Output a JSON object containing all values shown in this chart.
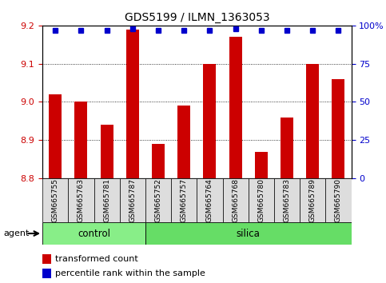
{
  "title": "GDS5199 / ILMN_1363053",
  "samples": [
    "GSM665755",
    "GSM665763",
    "GSM665781",
    "GSM665787",
    "GSM665752",
    "GSM665757",
    "GSM665764",
    "GSM665768",
    "GSM665780",
    "GSM665783",
    "GSM665789",
    "GSM665790"
  ],
  "red_values": [
    9.02,
    9.0,
    8.94,
    9.19,
    8.89,
    8.99,
    9.1,
    9.17,
    8.87,
    8.96,
    9.1,
    9.06
  ],
  "blue_values": [
    97,
    97,
    97,
    98,
    97,
    97,
    97,
    98,
    97,
    97,
    97,
    97
  ],
  "ylim_left": [
    8.8,
    9.2
  ],
  "ylim_right": [
    0,
    100
  ],
  "yticks_left": [
    8.8,
    8.9,
    9.0,
    9.1,
    9.2
  ],
  "yticks_right": [
    0,
    25,
    50,
    75,
    100
  ],
  "ytick_labels_right": [
    "0",
    "25",
    "50",
    "75",
    "100%"
  ],
  "control_count": 4,
  "silica_count": 8,
  "bar_color": "#cc0000",
  "dot_color": "#0000cc",
  "control_color": "#88ee88",
  "silica_color": "#66dd66",
  "grid_color": "#000000",
  "left_axis_color": "#cc0000",
  "right_axis_color": "#0000cc",
  "bar_width": 0.5,
  "bar_bottom": 8.8,
  "legend_red_label": "transformed count",
  "legend_blue_label": "percentile rank within the sample",
  "agent_label": "agent",
  "control_label": "control",
  "silica_label": "silica",
  "sample_box_color": "#dddddd"
}
